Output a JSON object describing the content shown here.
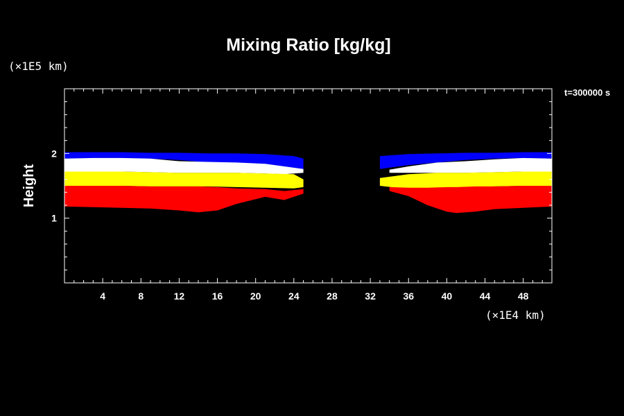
{
  "chart_data": {
    "type": "heatmap",
    "title": "Mixing Ratio [kg/kg]",
    "ylabel": "Height",
    "y_unit": "(×1E5 km)",
    "x_unit": "(×1E4 km)",
    "time_label": "t=300000 s",
    "xlim": [
      0,
      51
    ],
    "ylim": [
      0,
      3
    ],
    "x_ticks": [
      4,
      8,
      12,
      16,
      20,
      24,
      28,
      32,
      36,
      40,
      44,
      48
    ],
    "y_ticks": [
      1,
      2
    ],
    "colors": {
      "background": "#000000",
      "frame": "#ffffff",
      "blue": "#0000ff",
      "white": "#ffffff",
      "yellow": "#ffff00",
      "red": "#ff0000",
      "green": "#00c800"
    },
    "bands": [
      {
        "color": "blue",
        "left": {
          "x": [
            0,
            3,
            6,
            9,
            12,
            15,
            18,
            21,
            24,
            25
          ],
          "top": [
            2.02,
            2.02,
            2.02,
            2.01,
            2.01,
            2.0,
            2.0,
            1.99,
            1.96,
            1.92
          ],
          "bottom": [
            1.92,
            1.93,
            1.93,
            1.92,
            1.9,
            1.86,
            1.84,
            1.82,
            1.78,
            1.76
          ]
        },
        "right": {
          "x": [
            33,
            36,
            39,
            42,
            45,
            48,
            51
          ],
          "top": [
            1.96,
            1.99,
            2.0,
            2.01,
            2.01,
            2.02,
            2.02
          ],
          "bottom": [
            1.76,
            1.82,
            1.86,
            1.9,
            1.92,
            1.93,
            1.92
          ]
        }
      },
      {
        "color": "white",
        "left": {
          "x": [
            0,
            3,
            6,
            9,
            12,
            15,
            18,
            21,
            23,
            25
          ],
          "top": [
            1.92,
            1.93,
            1.93,
            1.92,
            1.88,
            1.87,
            1.86,
            1.84,
            1.8,
            1.76
          ],
          "bottom": [
            1.72,
            1.72,
            1.72,
            1.71,
            1.7,
            1.7,
            1.7,
            1.69,
            1.68,
            1.7
          ]
        },
        "right": {
          "x": [
            34,
            36,
            39,
            42,
            45,
            48,
            51
          ],
          "top": [
            1.75,
            1.8,
            1.86,
            1.88,
            1.91,
            1.93,
            1.92
          ],
          "bottom": [
            1.7,
            1.7,
            1.7,
            1.7,
            1.71,
            1.72,
            1.72
          ]
        }
      },
      {
        "color": "yellow",
        "left": {
          "x": [
            0,
            3,
            6,
            9,
            12,
            15,
            18,
            21,
            24,
            25
          ],
          "top": [
            1.72,
            1.72,
            1.72,
            1.71,
            1.7,
            1.7,
            1.7,
            1.69,
            1.68,
            1.6
          ],
          "bottom": [
            1.5,
            1.5,
            1.5,
            1.49,
            1.49,
            1.49,
            1.48,
            1.47,
            1.46,
            1.48
          ]
        },
        "right": {
          "x": [
            33,
            36,
            39,
            42,
            45,
            48,
            51
          ],
          "top": [
            1.62,
            1.68,
            1.7,
            1.7,
            1.71,
            1.72,
            1.72
          ],
          "bottom": [
            1.5,
            1.45,
            1.47,
            1.48,
            1.49,
            1.5,
            1.5
          ]
        }
      },
      {
        "color": "red",
        "left": {
          "x": [
            0,
            3,
            6,
            9,
            12,
            14,
            16,
            18,
            21,
            23,
            25
          ],
          "top": [
            1.5,
            1.5,
            1.5,
            1.49,
            1.49,
            1.49,
            1.48,
            1.46,
            1.45,
            1.42,
            1.45
          ],
          "bottom": [
            1.18,
            1.17,
            1.16,
            1.15,
            1.12,
            1.09,
            1.12,
            1.22,
            1.33,
            1.28,
            1.38
          ]
        },
        "right": {
          "x": [
            34,
            36,
            38,
            40,
            41,
            43,
            45,
            48,
            51
          ],
          "top": [
            1.48,
            1.47,
            1.47,
            1.48,
            1.48,
            1.49,
            1.49,
            1.5,
            1.5
          ],
          "bottom": [
            1.42,
            1.34,
            1.2,
            1.1,
            1.08,
            1.1,
            1.14,
            1.16,
            1.18
          ]
        }
      }
    ]
  }
}
